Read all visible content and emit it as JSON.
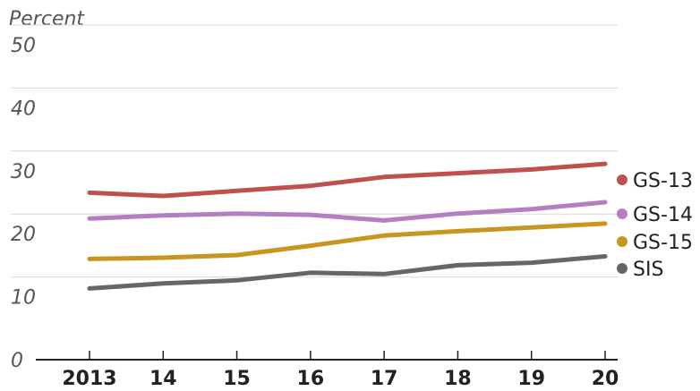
{
  "chart_data": {
    "type": "line",
    "ylabel": "Percent",
    "ylim": [
      0,
      50
    ],
    "yticks": [
      0,
      10,
      20,
      30,
      40,
      50
    ],
    "categories": [
      "2013",
      "14",
      "15",
      "16",
      "17",
      "18",
      "19",
      "20"
    ],
    "grid": true,
    "legend_placement": "right, at line ends",
    "series": [
      {
        "name": "GS-13",
        "color": "#c0504d",
        "values": [
          26.5,
          26.0,
          26.8,
          27.6,
          29.0,
          29.6,
          30.2,
          31.1
        ]
      },
      {
        "name": "GS-14",
        "color": "#b77dc2",
        "values": [
          22.4,
          22.9,
          23.2,
          23.0,
          22.1,
          23.2,
          23.9,
          25.0
        ]
      },
      {
        "name": "GS-15",
        "color": "#c8951f",
        "values": [
          16.0,
          16.2,
          16.6,
          18.1,
          19.7,
          20.4,
          21.0,
          21.6
        ]
      },
      {
        "name": "SIS",
        "color": "#666666",
        "values": [
          11.3,
          12.1,
          12.6,
          13.8,
          13.6,
          15.0,
          15.4,
          16.4
        ]
      }
    ]
  }
}
